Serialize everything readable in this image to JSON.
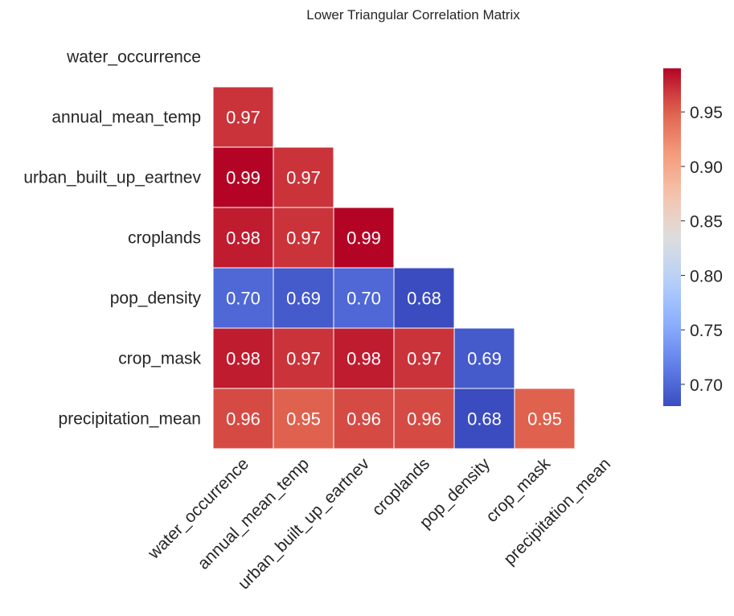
{
  "chart_data": {
    "type": "heatmap",
    "title": "Lower Triangular Correlation Matrix",
    "variables": [
      "water_occurrence",
      "annual_mean_temp",
      "urban_built_up_eartnev",
      "croplands",
      "pop_density",
      "crop_mask",
      "precipitation_mean"
    ],
    "matrix": [
      [],
      [
        0.97
      ],
      [
        0.99,
        0.97
      ],
      [
        0.98,
        0.97,
        0.99
      ],
      [
        0.7,
        0.69,
        0.7,
        0.68
      ],
      [
        0.98,
        0.97,
        0.98,
        0.97,
        0.69
      ],
      [
        0.96,
        0.95,
        0.96,
        0.96,
        0.68,
        0.95
      ]
    ],
    "mask": "upper triangle including diagonal",
    "value_format": "0.00",
    "colormap": "coolwarm",
    "color_range": [
      0.68,
      0.99
    ],
    "colorbar": {
      "ticks": [
        "0.70",
        "0.75",
        "0.80",
        "0.85",
        "0.90",
        "0.95"
      ],
      "tick_values": [
        0.7,
        0.75,
        0.8,
        0.85,
        0.9,
        0.95
      ],
      "placement": "right"
    },
    "cell_border_color": "#ffffff",
    "text_color": "#ffffff"
  }
}
